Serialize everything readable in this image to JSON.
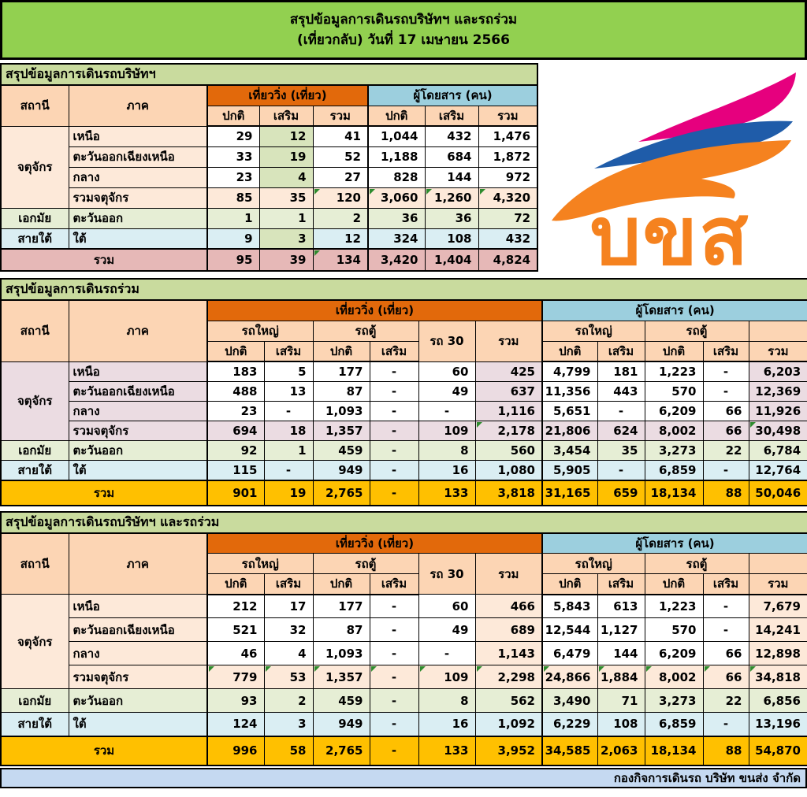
{
  "title": {
    "line1": "สรุปข้อมูลการเดินรถบริษัทฯ และรถร่วม",
    "line2": "(เที่ยวกลับ) วันที่ 17 เมษายน  2566"
  },
  "labels": {
    "station": "สถานี",
    "region": "ภาค",
    "trips": "เที่ยววิ่ง (เที่ยว)",
    "passengers": "ผู้โดยสาร (คน)",
    "normal": "ปกติ",
    "extra": "เสริม",
    "total": "รวม",
    "big_bus": "รถใหญ่",
    "van": "รถตู้",
    "bus30": "รถ 30"
  },
  "palette": {
    "white": "#FFFFFF",
    "titleGreen": "#92D050",
    "sectionGreen": "#C9DB9E",
    "headerPeach": "#FCD5B4",
    "headerOrange": "#E2690B",
    "headerBlue": "#9CCFDE",
    "peachLight": "#FDE9D9",
    "green": "#D8E4BC",
    "mauve": "#EBDCE2",
    "rowGreen": "#E6EED5",
    "rowBlue": "#DAEEF3",
    "rose": "#E6B8B7",
    "gold": "#FFC000",
    "footerBlue": "#C5D9F1",
    "triGreen": "#2E8B2E",
    "logoOrange": "#F5821F",
    "logoPink": "#E6007E",
    "logoBlue": "#1F5CA9"
  },
  "table1": {
    "section": "สรุปข้อมูลการเดินรถบริษัทฯ",
    "rows": [
      {
        "station": "จตุจักร",
        "station_rowspan": 4,
        "region": "เหนือ",
        "bg": "peachLight",
        "cell_bg": [
          "white",
          "green",
          "white",
          "white",
          "white",
          "white"
        ],
        "cells": [
          "29",
          "12",
          "41",
          "1,044",
          "432",
          "1,476"
        ]
      },
      {
        "region": "ตะวันออกเฉียงเหนือ",
        "bg": "peachLight",
        "cell_bg": [
          "white",
          "green",
          "white",
          "white",
          "white",
          "white"
        ],
        "cells": [
          "33",
          "19",
          "52",
          "1,188",
          "684",
          "1,872"
        ]
      },
      {
        "region": "กลาง",
        "bg": "peachLight",
        "cell_bg": [
          "white",
          "green",
          "white",
          "white",
          "white",
          "white"
        ],
        "cells": [
          "23",
          "4",
          "27",
          "828",
          "144",
          "972"
        ]
      },
      {
        "region": "รวมจตุจักร",
        "bg": "peachLight",
        "cells": [
          "85",
          "35",
          "120",
          "3,060",
          "1,260",
          "4,320"
        ],
        "tri": [
          2,
          3,
          4,
          5
        ]
      },
      {
        "station": "เอกมัย",
        "region": "ตะวันออก",
        "bg": "rowGreen",
        "cells": [
          "1",
          "1",
          "2",
          "36",
          "36",
          "72"
        ]
      },
      {
        "station": "สายใต้",
        "region": "ใต้",
        "bg": "rowBlue",
        "cell_bg": [
          "rowBlue",
          "green",
          "rowBlue",
          "rowBlue",
          "rowBlue",
          "rowBlue"
        ],
        "cells": [
          "9",
          "3",
          "12",
          "324",
          "108",
          "432"
        ]
      },
      {
        "total": true,
        "region": "รวม",
        "bg": "rose",
        "cls": "grand",
        "cells": [
          "95",
          "39",
          "134",
          "3,420",
          "1,404",
          "4,824"
        ],
        "tri": [
          2
        ]
      }
    ]
  },
  "table2": {
    "section": "สรุปข้อมูลการเดินรถร่วม",
    "rows": [
      {
        "station": "จตุจักร",
        "station_rowspan": 4,
        "region": "เหนือ",
        "bg": "mauve",
        "cell_bg": [
          "white",
          "white",
          "white",
          "white",
          "white",
          "mauve",
          "white",
          "white",
          "white",
          "white",
          "mauve"
        ],
        "cells": [
          "183",
          "5",
          "177",
          "-",
          "60",
          "425",
          "4,799",
          "181",
          "1,223",
          "-",
          "6,203"
        ]
      },
      {
        "region": "ตะวันออกเฉียงเหนือ",
        "bg": "mauve",
        "cell_bg": [
          "white",
          "white",
          "white",
          "white",
          "white",
          "mauve",
          "white",
          "white",
          "white",
          "white",
          "mauve"
        ],
        "cells": [
          "488",
          "13",
          "87",
          "-",
          "49",
          "637",
          "11,356",
          "443",
          "570",
          "-",
          "12,369"
        ]
      },
      {
        "region": "กลาง",
        "bg": "mauve",
        "cell_bg": [
          "white",
          "white",
          "white",
          "white",
          "white",
          "mauve",
          "white",
          "white",
          "white",
          "white",
          "mauve"
        ],
        "cells": [
          "23",
          "-",
          "1,093",
          "-",
          "-",
          "1,116",
          "5,651",
          "-",
          "6,209",
          "66",
          "11,926"
        ]
      },
      {
        "region": "รวมจตุจักร",
        "bg": "mauve",
        "cells": [
          "694",
          "18",
          "1,357",
          "-",
          "109",
          "2,178",
          "21,806",
          "624",
          "8,002",
          "66",
          "30,498"
        ],
        "tri": [
          5,
          10
        ]
      },
      {
        "station": "เอกมัย",
        "region": "ตะวันออก",
        "bg": "rowGreen",
        "cells": [
          "92",
          "1",
          "459",
          "-",
          "8",
          "560",
          "3,454",
          "35",
          "3,273",
          "22",
          "6,784"
        ]
      },
      {
        "station": "สายใต้",
        "region": "ใต้",
        "bg": "rowBlue",
        "cells": [
          "115",
          "-",
          "949",
          "-",
          "16",
          "1,080",
          "5,905",
          "-",
          "6,859",
          "-",
          "12,764"
        ]
      },
      {
        "total": true,
        "region": "รวม",
        "bg": "gold",
        "cls": "grand",
        "cells": [
          "901",
          "19",
          "2,765",
          "-",
          "133",
          "3,818",
          "31,165",
          "659",
          "18,134",
          "88",
          "50,046"
        ]
      }
    ]
  },
  "table3": {
    "section": "สรุปข้อมูลการเดินรถบริษัทฯ และรถร่วม",
    "rows": [
      {
        "station": "จตุจักร",
        "station_rowspan": 4,
        "region": "เหนือ",
        "bg": "peachLight",
        "cell_bg": [
          "white",
          "white",
          "white",
          "white",
          "white",
          "peachLight",
          "white",
          "white",
          "white",
          "white",
          "peachLight"
        ],
        "cells": [
          "212",
          "17",
          "177",
          "-",
          "60",
          "466",
          "5,843",
          "613",
          "1,223",
          "-",
          "7,679"
        ]
      },
      {
        "region": "ตะวันออกเฉียงเหนือ",
        "bg": "peachLight",
        "cell_bg": [
          "white",
          "white",
          "white",
          "white",
          "white",
          "peachLight",
          "white",
          "white",
          "white",
          "white",
          "peachLight"
        ],
        "cells": [
          "521",
          "32",
          "87",
          "-",
          "49",
          "689",
          "12,544",
          "1,127",
          "570",
          "-",
          "14,241"
        ]
      },
      {
        "region": "กลาง",
        "bg": "peachLight",
        "cell_bg": [
          "white",
          "white",
          "white",
          "white",
          "white",
          "peachLight",
          "white",
          "white",
          "white",
          "white",
          "peachLight"
        ],
        "cells": [
          "46",
          "4",
          "1,093",
          "-",
          "-",
          "1,143",
          "6,479",
          "144",
          "6,209",
          "66",
          "12,898"
        ]
      },
      {
        "region": "รวมจตุจักร",
        "bg": "peachLight",
        "cells": [
          "779",
          "53",
          "1,357",
          "-",
          "109",
          "2,298",
          "24,866",
          "1,884",
          "8,002",
          "66",
          "34,818"
        ],
        "tri": [
          0,
          1,
          2,
          3,
          4,
          5,
          6,
          7,
          8,
          9,
          10
        ]
      },
      {
        "station": "เอกมัย",
        "region": "ตะวันออก",
        "bg": "rowGreen",
        "cells": [
          "93",
          "2",
          "459",
          "-",
          "8",
          "562",
          "3,490",
          "71",
          "3,273",
          "22",
          "6,856"
        ]
      },
      {
        "station": "สายใต้",
        "region": "ใต้",
        "bg": "rowBlue",
        "cells": [
          "124",
          "3",
          "949",
          "-",
          "16",
          "1,092",
          "6,229",
          "108",
          "6,859",
          "-",
          "13,196"
        ]
      },
      {
        "total": true,
        "region": "รวม",
        "bg": "gold",
        "cls": "grand",
        "cells": [
          "996",
          "58",
          "2,765",
          "-",
          "133",
          "3,952",
          "34,585",
          "2,063",
          "18,134",
          "88",
          "54,870"
        ]
      }
    ]
  },
  "footer": {
    "text": "กองกิจการเดินรถ บริษัท ขนส่ง จำกัด"
  },
  "logo": {
    "text": "บขส"
  }
}
